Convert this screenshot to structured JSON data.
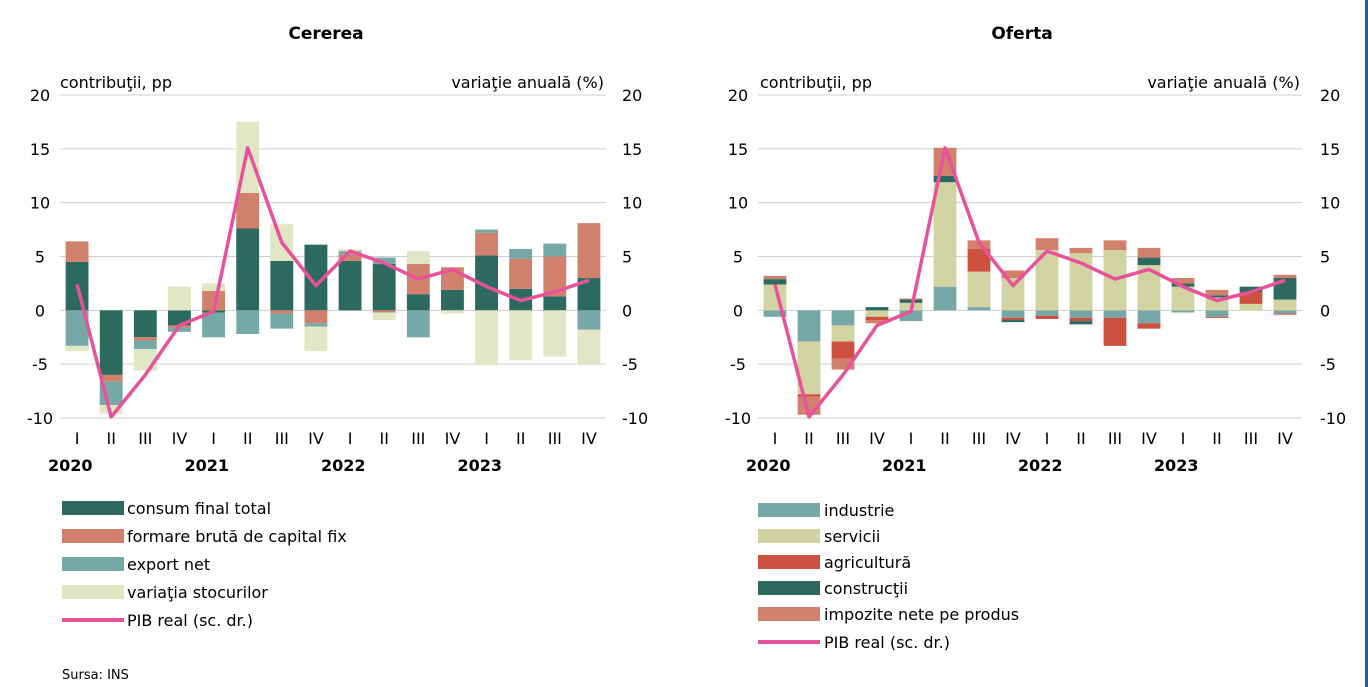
{
  "source": "Sursa: INS",
  "chart_data": [
    {
      "type": "bar",
      "title": "Cererea",
      "left_axis_label": "contribuţii, pp",
      "right_axis_label": "variaţie anuală (%)",
      "ylim": [
        -10,
        20
      ],
      "yticks": [
        "20",
        "15",
        "10",
        "5",
        "0",
        "-5",
        "-10"
      ],
      "categories": [
        "I",
        "II",
        "III",
        "IV",
        "I",
        "II",
        "III",
        "IV",
        "I",
        "II",
        "III",
        "IV",
        "I",
        "II",
        "III",
        "IV"
      ],
      "year_labels": [
        {
          "index": 0,
          "label": "2020"
        },
        {
          "index": 4,
          "label": "2021"
        },
        {
          "index": 8,
          "label": "2022"
        },
        {
          "index": 12,
          "label": "2023"
        }
      ],
      "series": [
        {
          "name": "consum final total",
          "color": "#2c6a60",
          "values": [
            4.5,
            -6.0,
            -2.5,
            -1.4,
            -0.2,
            7.6,
            4.6,
            6.1,
            4.6,
            4.3,
            1.5,
            1.9,
            5.1,
            2.0,
            1.3,
            3.0
          ]
        },
        {
          "name": "formare brută de capital fix",
          "color": "#d1806b",
          "values": [
            1.9,
            -0.6,
            -0.3,
            -0.2,
            1.8,
            3.3,
            -0.3,
            -1.2,
            0.6,
            -0.2,
            2.8,
            2.1,
            2.1,
            2.8,
            3.7,
            5.1
          ]
        },
        {
          "name": "export net",
          "color": "#76a8a8",
          "values": [
            -3.3,
            -2.2,
            -0.8,
            -0.4,
            -2.3,
            -2.2,
            -1.4,
            -0.3,
            0.3,
            0.6,
            -2.5,
            0.0,
            0.3,
            0.9,
            1.2,
            -1.8
          ]
        },
        {
          "name": "variaţia stocurilor",
          "color": "#e2e6c5",
          "values": [
            -0.5,
            -0.8,
            -2.0,
            2.2,
            0.7,
            6.6,
            3.4,
            -2.3,
            0.2,
            -0.7,
            1.2,
            -0.3,
            -5.1,
            -4.6,
            -4.3,
            -3.2
          ]
        }
      ],
      "line": {
        "name": "PIB real (sc. dr.)",
        "color": "#e8529b",
        "values": [
          2.4,
          -9.9,
          -6.0,
          -1.4,
          -0.1,
          15.1,
          6.3,
          2.3,
          5.5,
          4.4,
          2.9,
          3.8,
          2.2,
          0.9,
          1.7,
          2.8
        ]
      }
    },
    {
      "type": "bar",
      "title": "Oferta",
      "left_axis_label": "contribuţii, pp",
      "right_axis_label": "variaţie anuală (%)",
      "ylim": [
        -10,
        20
      ],
      "yticks": [
        "20",
        "15",
        "10",
        "5",
        "0",
        "-5",
        "-10"
      ],
      "categories": [
        "I",
        "II",
        "III",
        "IV",
        "I",
        "II",
        "III",
        "IV",
        "I",
        "II",
        "III",
        "IV",
        "I",
        "II",
        "III",
        "IV"
      ],
      "year_labels": [
        {
          "index": 0,
          "label": "2020"
        },
        {
          "index": 4,
          "label": "2021"
        },
        {
          "index": 8,
          "label": "2022"
        },
        {
          "index": 12,
          "label": "2023"
        }
      ],
      "series": [
        {
          "name": "industrie",
          "color": "#76a8a8",
          "values": [
            -0.6,
            -2.9,
            -1.4,
            0.0,
            -1.0,
            2.2,
            0.3,
            -0.7,
            -0.5,
            -0.7,
            -0.7,
            -1.2,
            -0.2,
            -0.6,
            0.0,
            -0.3
          ]
        },
        {
          "name": "servicii",
          "color": "#d2d3a2",
          "values": [
            2.4,
            -4.9,
            -1.5,
            -0.6,
            0.7,
            9.7,
            3.3,
            3.0,
            5.6,
            5.3,
            5.6,
            4.2,
            2.2,
            1.2,
            0.6,
            1.0
          ]
        },
        {
          "name": "agricultură",
          "color": "#cd4f3e",
          "values": [
            0.0,
            -0.2,
            -1.6,
            -0.3,
            0.0,
            0.0,
            2.1,
            -0.2,
            -0.3,
            -0.3,
            -2.6,
            -0.5,
            0.0,
            -0.1,
            1.1,
            -0.1
          ]
        },
        {
          "name": "construcţii",
          "color": "#2c6a60",
          "values": [
            0.5,
            0.0,
            0.0,
            0.3,
            0.3,
            0.6,
            0.0,
            -0.2,
            0.0,
            -0.3,
            0.0,
            0.7,
            0.3,
            0.2,
            0.5,
            2.0
          ]
        },
        {
          "name": "impozite nete pe produs",
          "color": "#d1806b",
          "values": [
            0.3,
            -1.7,
            -1.0,
            -0.3,
            0.1,
            2.6,
            0.8,
            0.7,
            1.1,
            0.5,
            0.9,
            0.9,
            0.5,
            0.5,
            0.0,
            0.3
          ]
        }
      ],
      "line": {
        "name": "PIB real (sc. dr.)",
        "color": "#e8529b",
        "values": [
          2.4,
          -9.9,
          -6.0,
          -1.4,
          -0.1,
          15.1,
          6.3,
          2.3,
          5.5,
          4.4,
          2.9,
          3.8,
          2.2,
          0.9,
          1.7,
          2.8
        ]
      }
    }
  ]
}
